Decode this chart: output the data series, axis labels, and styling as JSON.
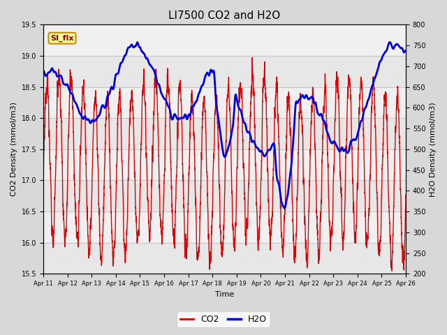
{
  "title": "LI7500 CO2 and H2O",
  "xlabel": "Time",
  "ylabel_left": "CO2 Density (mmol/m3)",
  "ylabel_right": "H2O Density (mmol/m3)",
  "ylim_left": [
    15.5,
    19.5
  ],
  "ylim_right": [
    200,
    800
  ],
  "yticks_left": [
    15.5,
    16.0,
    16.5,
    17.0,
    17.5,
    18.0,
    18.5,
    19.0,
    19.5
  ],
  "yticks_right": [
    200,
    250,
    300,
    350,
    400,
    450,
    500,
    550,
    600,
    650,
    700,
    750,
    800
  ],
  "xtick_labels": [
    "Apr 11",
    "Apr 12",
    "Apr 13",
    "Apr 14",
    "Apr 15",
    "Apr 16",
    "Apr 17",
    "Apr 18",
    "Apr 19",
    "Apr 20",
    "Apr 21",
    "Apr 22",
    "Apr 23",
    "Apr 24",
    "Apr 25",
    "Apr 26"
  ],
  "co2_color": "#dd0000",
  "h2o_color": "#0000dd",
  "legend_co2": "CO2",
  "legend_h2o": "H2O",
  "annotation_text": "SI_flx",
  "background_color": "#d8d8d8",
  "plot_bg_color": "#f0f0f0",
  "grid_color": "#bbbbbb",
  "title_fontsize": 11,
  "label_fontsize": 8,
  "tick_fontsize": 7,
  "co2_linewidth": 1.0,
  "h2o_linewidth": 2.0,
  "seed": 12345
}
